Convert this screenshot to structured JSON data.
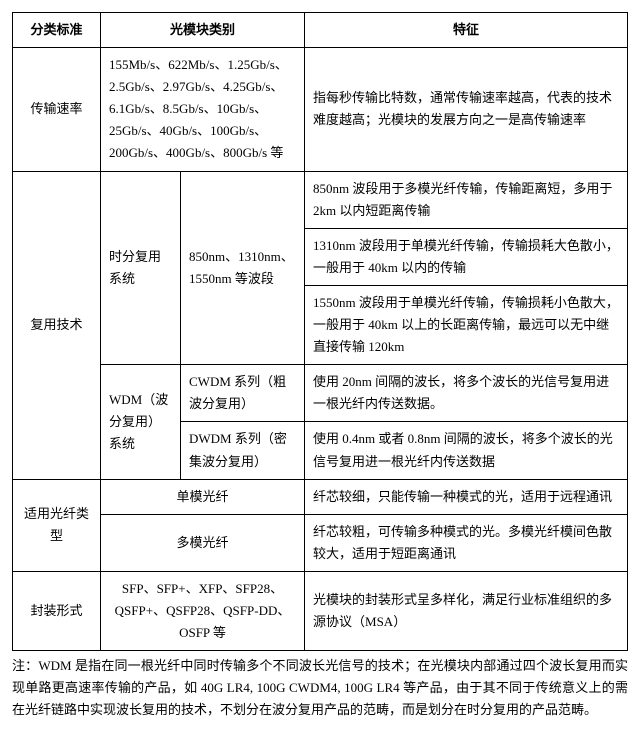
{
  "headers": {
    "standard": "分类标准",
    "category": "光模块类别",
    "feature": "特征"
  },
  "rows": {
    "r1_c1": "传输速率",
    "r1_c2": "155Mb/s、622Mb/s、1.25Gb/s、2.5Gb/s、2.97Gb/s、4.25Gb/s、6.1Gb/s、8.5Gb/s、10Gb/s、25Gb/s、40Gb/s、100Gb/s、200Gb/s、400Gb/s、800Gb/s 等",
    "r1_c3": "指每秒传输比特数，通常传输速率越高，代表的技术难度越高；光模块的发展方向之一是高传输速率",
    "r2_c1": "复用技术",
    "r2_tdm": "时分复用系统",
    "r2_tdm_band": "850nm、1310nm、1550nm 等波段",
    "r2_tdm_f1": "850nm 波段用于多模光纤传输，传输距离短，多用于 2km 以内短距离传输",
    "r2_tdm_f2": "1310nm 波段用于单模光纤传输，传输损耗大色散小，一般用于 40km 以内的传输",
    "r2_tdm_f3": "1550nm 波段用于单模光纤传输，传输损耗小色散大，一般用于 40km 以上的长距离传输，最远可以无中继直接传输 120km",
    "r2_wdm": "WDM（波分复用）系统",
    "r2_wdm_cwdm": "CWDM 系列（粗波分复用）",
    "r2_wdm_cwdm_f": "使用 20nm 间隔的波长，将多个波长的光信号复用进一根光纤内传送数据。",
    "r2_wdm_dwdm": "DWDM 系列（密集波分复用）",
    "r2_wdm_dwdm_f": "使用 0.4nm 或者 0.8nm 间隔的波长，将多个波长的光信号复用进一根光纤内传送数据",
    "r3_c1": "适用光纤类型",
    "r3_single": "单模光纤",
    "r3_single_f": "纤芯较细，只能传输一种模式的光，适用于远程通讯",
    "r3_multi": "多模光纤",
    "r3_multi_f": "纤芯较粗，可传输多种模式的光。多模光纤模间色散较大，适用于短距离通讯",
    "r4_c1": "封装形式",
    "r4_c2": "SFP、SFP+、XFP、SFP28、QSFP+、QSFP28、QSFP-DD、OSFP 等",
    "r4_c3": "光模块的封装形式呈多样化，满足行业标准组织的多源协议（MSA）"
  },
  "note": "注：WDM 是指在同一根光纤中同时传输多个不同波长光信号的技术；在光模块内部通过四个波长复用而实现单路更高速率传输的产品，如 40G LR4, 100G CWDM4, 100G LR4 等产品，由于其不同于传统意义上的需在光纤链路中实现波长复用的技术，不划分在波分复用产品的范畴，而是划分在时分复用的产品范畴。"
}
